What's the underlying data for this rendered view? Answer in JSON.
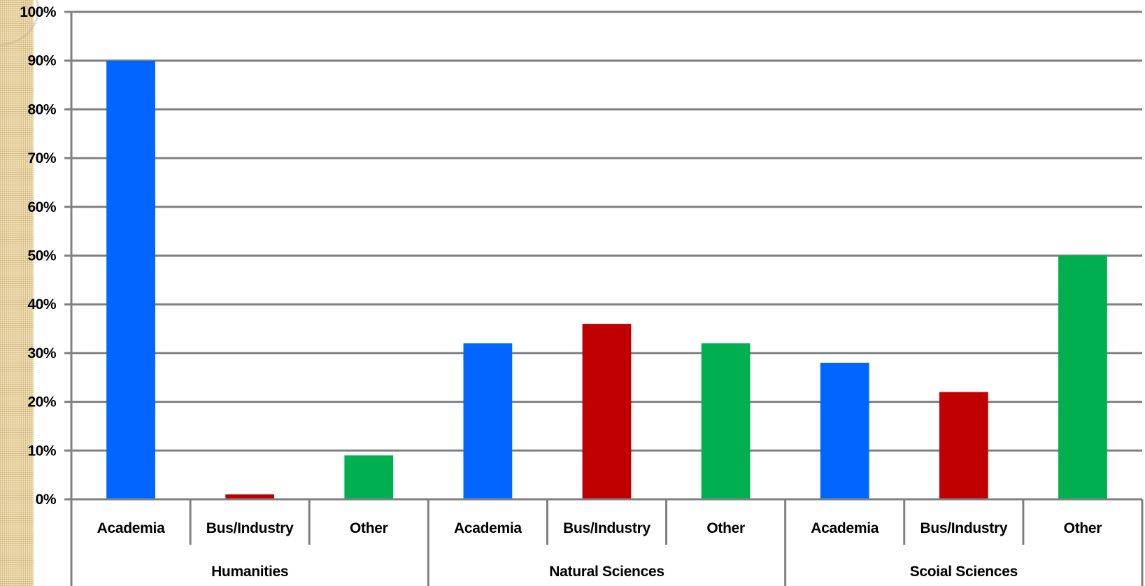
{
  "chart_data": {
    "type": "bar",
    "title": "",
    "xlabel": "",
    "ylabel": "",
    "ylim": [
      0,
      100
    ],
    "y_ticks": [
      "0%",
      "10%",
      "20%",
      "30%",
      "40%",
      "50%",
      "60%",
      "70%",
      "80%",
      "90%",
      "100%"
    ],
    "grid": true,
    "legend": "none",
    "groups": [
      {
        "name": "Humanities",
        "categories": [
          "Academia",
          "Bus/Industry",
          "Other"
        ],
        "values": [
          90,
          1,
          9
        ]
      },
      {
        "name": "Natural Sciences",
        "categories": [
          "Academia",
          "Bus/Industry",
          "Other"
        ],
        "values": [
          32,
          36,
          32
        ]
      },
      {
        "name": "Scoial Sciences",
        "categories": [
          "Academia",
          "Bus/Industry",
          "Other"
        ],
        "values": [
          28,
          22,
          50
        ]
      }
    ],
    "colors": {
      "Academia": "#0066ff",
      "Bus/Industry": "#c00000",
      "Other": "#00b050"
    }
  }
}
